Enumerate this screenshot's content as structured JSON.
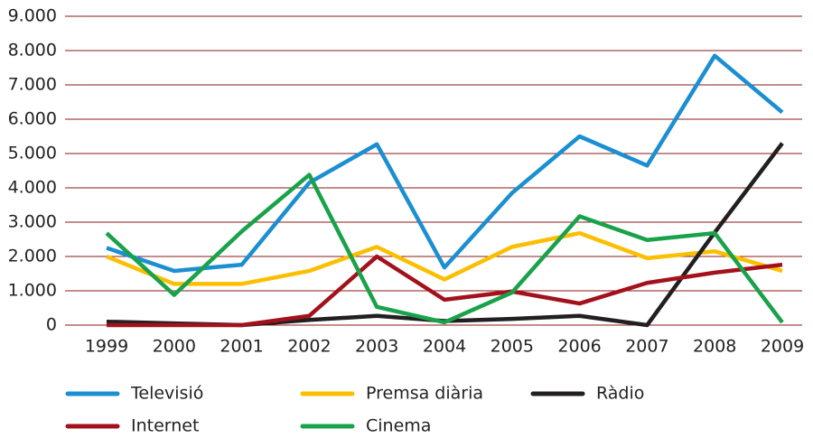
{
  "chart_data": {
    "type": "line",
    "categories": [
      "1999",
      "2000",
      "2001",
      "2002",
      "2003",
      "2004",
      "2005",
      "2006",
      "2007",
      "2008",
      "2009"
    ],
    "series": [
      {
        "name": "Televisió",
        "color": "#1b8fd1",
        "values": [
          2250,
          1580,
          1760,
          4150,
          5270,
          1680,
          3850,
          5500,
          4650,
          7850,
          6200
        ]
      },
      {
        "name": "Premsa diària",
        "color": "#fbbf00",
        "values": [
          2000,
          1200,
          1200,
          1580,
          2280,
          1330,
          2280,
          2680,
          1950,
          2150,
          1580
        ]
      },
      {
        "name": "Ràdio",
        "color": "#231f20",
        "values": [
          100,
          50,
          0,
          150,
          270,
          120,
          180,
          270,
          0,
          2700,
          5300
        ]
      },
      {
        "name": "Internet",
        "color": "#a3121c",
        "values": [
          0,
          0,
          0,
          270,
          2000,
          740,
          980,
          630,
          1230,
          1530,
          1760
        ]
      },
      {
        "name": "Cinema",
        "color": "#19a24a",
        "values": [
          2680,
          880,
          2730,
          4380,
          530,
          80,
          950,
          3170,
          2480,
          2680,
          80
        ]
      }
    ],
    "ylim": [
      0,
      9000
    ],
    "yticks": [
      0,
      {
        "value": 1000,
        "label": "1.000"
      },
      {
        "value": 2000,
        "label": "2.000"
      },
      {
        "value": 3000,
        "label": "3.000"
      },
      {
        "value": 4000,
        "label": "4.000"
      },
      {
        "value": 5000,
        "label": "5.000"
      },
      {
        "value": 6000,
        "label": "6.000"
      },
      {
        "value": 7000,
        "label": "7.000"
      },
      {
        "value": 8000,
        "label": "8.000"
      },
      {
        "value": 9000,
        "label": "9.000"
      }
    ],
    "grid": true
  }
}
